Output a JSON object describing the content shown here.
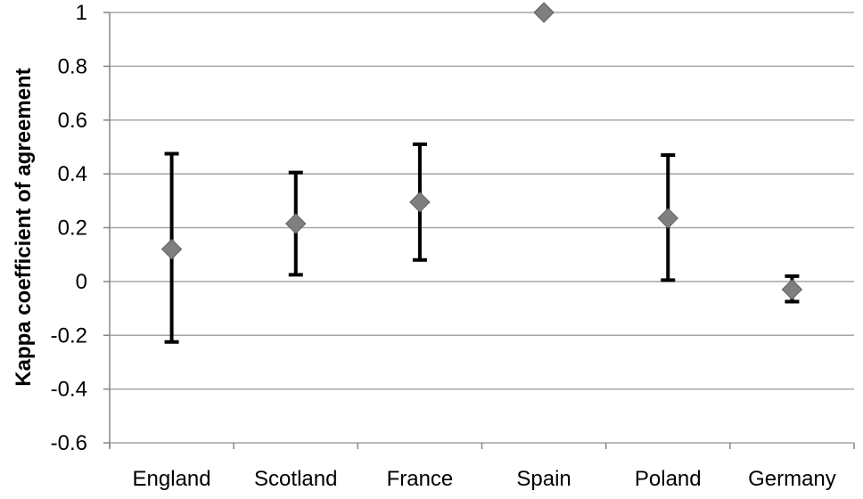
{
  "chart_data": {
    "type": "scatter",
    "title": "",
    "xlabel": "",
    "ylabel": "Kappa coefficient of agreement",
    "ylim": [
      -0.6,
      1
    ],
    "yticks": [
      1,
      0.8,
      0.6,
      0.4,
      0.2,
      0,
      -0.2,
      -0.4,
      -0.6
    ],
    "ytick_labels": [
      "1",
      "0.8",
      "0.6",
      "0.4",
      "0.2",
      "0",
      "-0.2",
      "-0.4",
      "-0.6"
    ],
    "grid": true,
    "categories": [
      "England",
      "Scotland",
      "France",
      "Spain",
      "Poland",
      "Germany"
    ],
    "series": [
      {
        "values": [
          0.12,
          0.215,
          0.295,
          1.0,
          0.235,
          -0.03
        ],
        "error_low": [
          -0.225,
          0.025,
          0.08,
          null,
          0.005,
          -0.075
        ],
        "error_high": [
          0.475,
          0.405,
          0.51,
          null,
          0.47,
          0.02
        ]
      }
    ],
    "colors": {
      "marker": "#7f7f7f",
      "marker_stroke": "#5f5f5f",
      "error_bar": "#000000",
      "grid": "#a6a6a6",
      "axis": "#868686"
    }
  }
}
